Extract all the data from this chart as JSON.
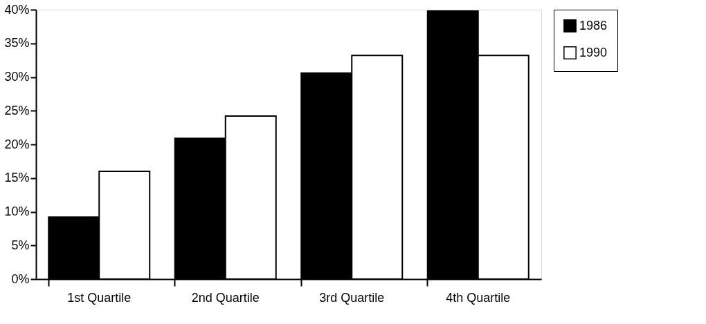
{
  "chart_data": {
    "type": "bar",
    "categories": [
      "1st Quartile",
      "2nd Quartile",
      "3rd Quartile",
      "4th Quartile"
    ],
    "series": [
      {
        "name": "1986",
        "color": "#000000",
        "values": [
          9.2,
          20.9,
          30.6,
          39.8
        ]
      },
      {
        "name": "1990",
        "color": "#ffffff",
        "values": [
          16.0,
          24.2,
          33.2,
          33.2
        ]
      }
    ],
    "ylim": [
      0,
      40
    ],
    "yticks": [
      {
        "value": 0,
        "label": "0%"
      },
      {
        "value": 5,
        "label": "5%"
      },
      {
        "value": 10,
        "label": "10%"
      },
      {
        "value": 15,
        "label": "15%"
      },
      {
        "value": 20,
        "label": "20%"
      },
      {
        "value": 25,
        "label": "25%"
      },
      {
        "value": 30,
        "label": "30%"
      },
      {
        "value": 35,
        "label": "35%"
      },
      {
        "value": 40,
        "label": "40%"
      }
    ],
    "grid": false,
    "legend": "right"
  }
}
